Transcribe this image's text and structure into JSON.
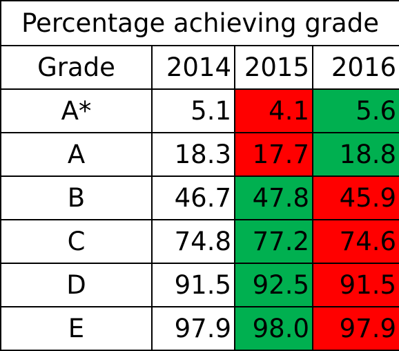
{
  "chart_data": {
    "type": "table",
    "title": "Percentage achieving grade",
    "columns": [
      "Grade",
      "2014",
      "2015",
      "2016"
    ],
    "rows": [
      {
        "grade": "A*",
        "values": [
          "5.1",
          "4.1",
          "5.6"
        ],
        "colors": [
          "",
          "#ff0000",
          "#00b050"
        ]
      },
      {
        "grade": "A",
        "values": [
          "18.3",
          "17.7",
          "18.8"
        ],
        "colors": [
          "",
          "#ff0000",
          "#00b050"
        ]
      },
      {
        "grade": "B",
        "values": [
          "46.7",
          "47.8",
          "45.9"
        ],
        "colors": [
          "",
          "#00b050",
          "#ff0000"
        ]
      },
      {
        "grade": "C",
        "values": [
          "74.8",
          "77.2",
          "74.6"
        ],
        "colors": [
          "",
          "#00b050",
          "#ff0000"
        ]
      },
      {
        "grade": "D",
        "values": [
          "91.5",
          "92.5",
          "91.5"
        ],
        "colors": [
          "",
          "#00b050",
          "#ff0000"
        ]
      },
      {
        "grade": "E",
        "values": [
          "97.9",
          "98.0",
          "97.9"
        ],
        "colors": [
          "",
          "#00b050",
          "#ff0000"
        ]
      }
    ],
    "grid": true
  },
  "colors": {
    "decrease": "#ff0000",
    "increase": "#00b050"
  }
}
